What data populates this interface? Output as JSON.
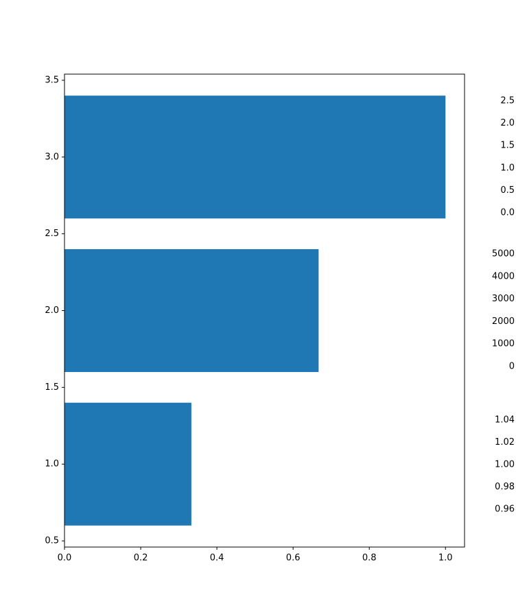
{
  "chart_data": [
    {
      "type": "barh",
      "y": [
        1,
        2,
        3
      ],
      "values": [
        0.333,
        0.667,
        1.0
      ],
      "height": 0.8,
      "color": "#1f77b4",
      "xlim": [
        0,
        1.05
      ],
      "ylim": [
        0.46,
        3.54
      ],
      "xticks": [
        {
          "value": 0,
          "label": "0.0"
        },
        0.2,
        0.4,
        0.6,
        0.8,
        {
          "value": 1,
          "label": "1.0"
        }
      ],
      "yticks": [
        0.5,
        {
          "value": 1,
          "label": "1.0"
        },
        1.5,
        {
          "value": 2,
          "label": "2.0"
        },
        2.5,
        {
          "value": 3,
          "label": "3.0"
        },
        3.5
      ]
    },
    {
      "type": "bar",
      "ylim": [
        -0.23,
        2.76
      ],
      "yticks": [
        {
          "value": 0,
          "label": "0.0"
        },
        0.5,
        {
          "value": 1,
          "label": "1.0"
        },
        1.5,
        {
          "value": 2,
          "label": "2.0"
        },
        2.5
      ]
    },
    {
      "type": "bar",
      "ylim": [
        -488,
        5457
      ],
      "yticks": [
        0,
        1000,
        2000,
        3000,
        4000,
        5000
      ]
    },
    {
      "type": "bar",
      "ylim": [
        0.949,
        1.0505
      ],
      "yticks": [
        0.96,
        0.98,
        {
          "value": 1,
          "label": "1.00"
        },
        1.02,
        1.04
      ]
    }
  ]
}
